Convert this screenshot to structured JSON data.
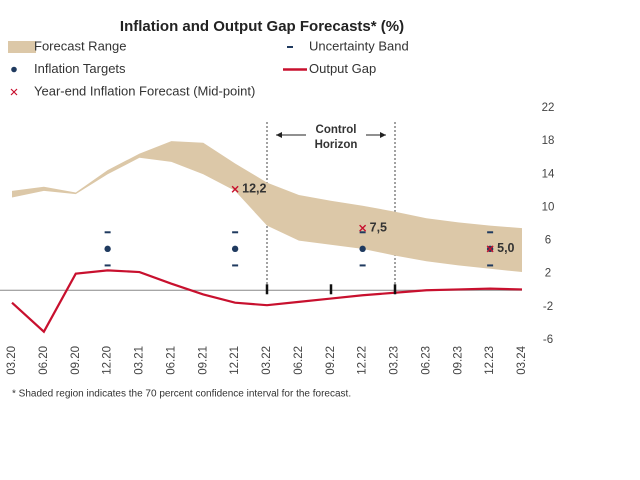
{
  "chart_data": {
    "type": "combo",
    "title": "Inflation and Output Gap Forecasts* (%)",
    "footnote": "* Shaded region indicates the 70 percent confidence interval for the forecast.",
    "annotations": [
      "Control",
      "Horizon"
    ],
    "categories": [
      "03.20",
      "06.20",
      "09.20",
      "12.20",
      "03.21",
      "06.21",
      "09.21",
      "12.21",
      "03.22",
      "06.22",
      "09.22",
      "12.22",
      "03.23",
      "06.23",
      "09.23",
      "12.23",
      "03.24"
    ],
    "ylim": [
      -6,
      22
    ],
    "yticks": [
      -6,
      -2,
      2,
      6,
      10,
      14,
      18,
      22
    ],
    "series": [
      {
        "name": "Forecast Range",
        "kind": "range",
        "color": "#dcc8a8",
        "high": [
          12,
          12.5,
          11.8,
          14.5,
          16.5,
          18,
          17.8,
          15.3,
          13,
          11.5,
          10.8,
          10.2,
          9.5,
          8.7,
          8.2,
          7.8,
          7.5
        ],
        "low": [
          11.2,
          12,
          11.6,
          14,
          16,
          15.5,
          14,
          12,
          7.8,
          6,
          5.5,
          5,
          4.2,
          3.5,
          3,
          2.6,
          2.2
        ]
      },
      {
        "name": "Uncertainty Band",
        "kind": "band",
        "color": "#1f3a5f",
        "low": [
          null,
          null,
          null,
          3,
          null,
          null,
          null,
          3,
          null,
          null,
          null,
          3,
          null,
          null,
          null,
          3,
          null
        ],
        "high": [
          null,
          null,
          null,
          7,
          null,
          null,
          null,
          7,
          null,
          null,
          null,
          7,
          null,
          null,
          null,
          7,
          null
        ]
      },
      {
        "name": "Inflation Targets",
        "kind": "dot",
        "color": "#1f3a5f",
        "values": [
          null,
          null,
          null,
          5,
          null,
          null,
          null,
          5,
          null,
          null,
          null,
          5,
          null,
          null,
          null,
          5,
          null
        ]
      },
      {
        "name": "Output Gap",
        "kind": "line",
        "color": "#c8102e",
        "values": [
          -1.5,
          -5,
          2,
          2.4,
          2.2,
          0.8,
          -0.5,
          -1.5,
          -1.8,
          -1.4,
          -1,
          -0.6,
          -0.3,
          0,
          0.1,
          0.2,
          0.1
        ]
      },
      {
        "name": "Year-end Inflation Forecast (Mid-point)",
        "kind": "cross",
        "color": "#c8102e",
        "values": [
          null,
          null,
          null,
          null,
          null,
          null,
          null,
          12.2,
          null,
          null,
          null,
          7.5,
          null,
          null,
          null,
          5.0,
          null
        ],
        "value_labels": [
          null,
          null,
          null,
          null,
          null,
          null,
          null,
          "12,2",
          null,
          null,
          null,
          "7,5",
          null,
          null,
          null,
          "5,0",
          null
        ]
      }
    ]
  }
}
